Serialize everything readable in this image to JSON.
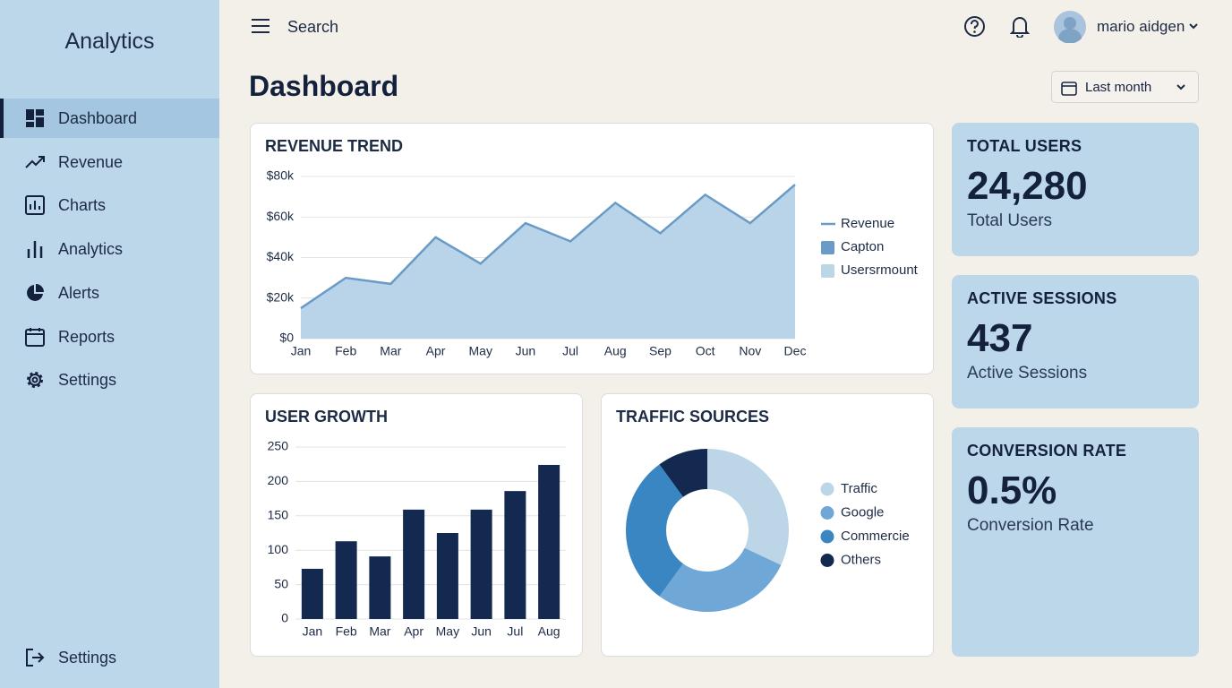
{
  "sidebar": {
    "title": "Analytics",
    "items": [
      "Dashboard",
      "Revenue",
      "Charts",
      "Analytics",
      "Alerts",
      "Reports",
      "Settings"
    ],
    "footer": "Settings"
  },
  "header": {
    "search": "Search",
    "user": "mario aidgen",
    "page_title": "Dashboard",
    "date_filter": "Last month"
  },
  "stats": [
    {
      "title": "TOTAL USERS",
      "value": "24,280",
      "label": "Total Users"
    },
    {
      "title": "ACTIVE SESSIONS",
      "value": "437",
      "label": "Active Sessions"
    },
    {
      "title": "CONVERSION RATE",
      "value": "0.5%",
      "label": "Conversion Rate"
    }
  ],
  "chart_data": [
    {
      "type": "area",
      "title": "REVENUE TREND",
      "categories": [
        "Jan",
        "Feb",
        "Mar",
        "Apr",
        "May",
        "Jun",
        "Jul",
        "Aug",
        "Sep",
        "Oct",
        "Nov",
        "Dec"
      ],
      "series": [
        {
          "name": "Revenue",
          "color": "#6a9bc6",
          "fill": "#b9d4e8",
          "values": [
            15000,
            30000,
            27000,
            50000,
            37000,
            57000,
            48000,
            67000,
            52000,
            71000,
            57000,
            76000
          ]
        }
      ],
      "extra_legend": [
        {
          "name": "Capton",
          "color": "#6a9bc6"
        },
        {
          "name": "Usersrmount",
          "color": "#bcd6e8"
        }
      ],
      "ylim": [
        0,
        80000
      ],
      "yticks": [
        {
          "value": 0,
          "label": "$0"
        },
        {
          "value": 20000,
          "label": "$20k"
        },
        {
          "value": 40000,
          "label": "$40k"
        },
        {
          "value": 60000,
          "label": "$60k"
        },
        {
          "value": 80000,
          "label": "$80k"
        }
      ],
      "grid": true
    },
    {
      "type": "bar",
      "title": "USER GROWTH",
      "categories": [
        "Jan",
        "Feb",
        "Mar",
        "Apr",
        "May",
        "Jun",
        "Jul",
        "Aug"
      ],
      "values": [
        73,
        113,
        91,
        159,
        125,
        159,
        186,
        224
      ],
      "color": "#13294f",
      "ylim": [
        0,
        250
      ],
      "yticks": [
        0,
        50,
        100,
        150,
        200,
        250
      ],
      "grid": true
    },
    {
      "type": "donut",
      "title": "TRAFFIC SOURCES",
      "categories": [
        "Traffic",
        "Google",
        "Commercie",
        "Others"
      ],
      "values": [
        32,
        28,
        30,
        10
      ],
      "colors": [
        "#bcd6e8",
        "#6fa8d6",
        "#3a86c2",
        "#13294f"
      ]
    }
  ]
}
